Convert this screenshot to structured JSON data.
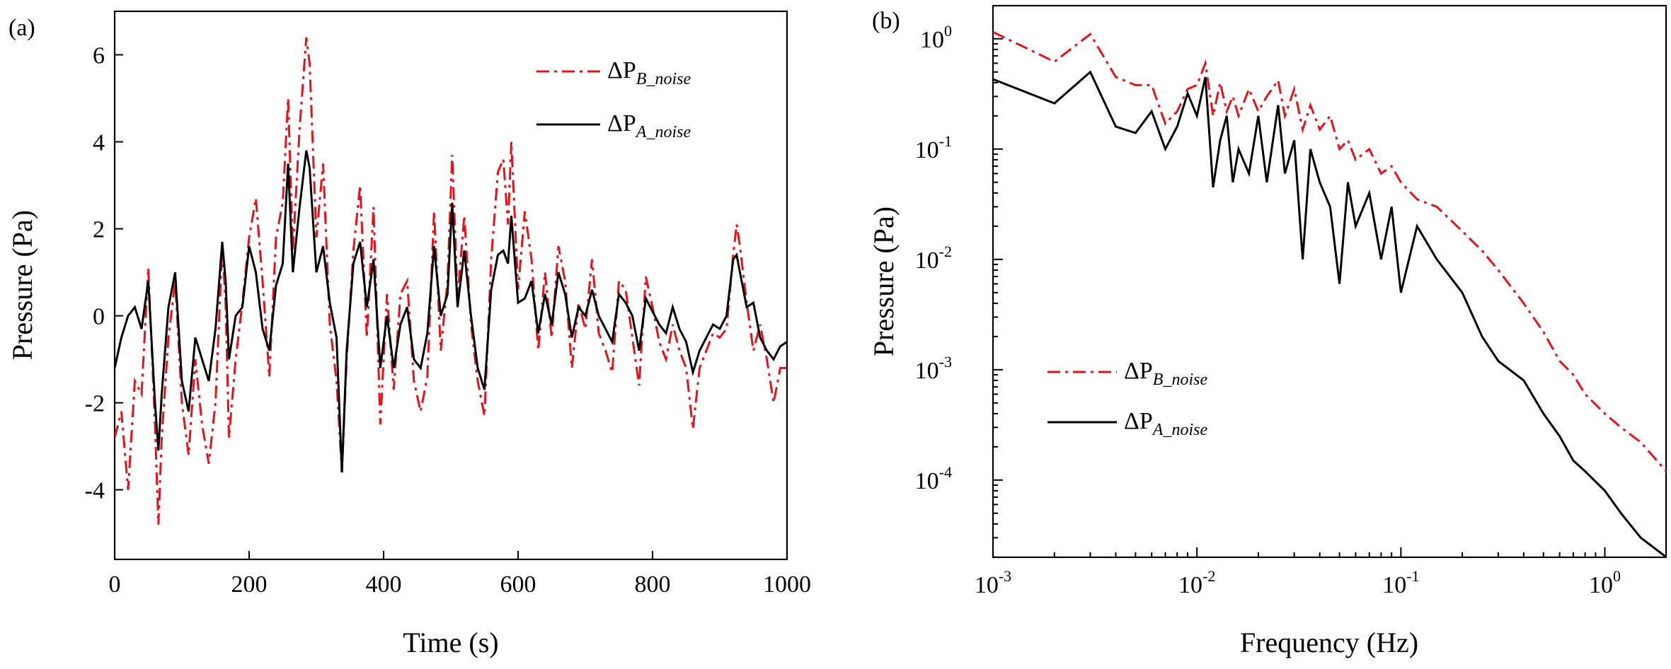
{
  "chart_data": [
    {
      "type": "line",
      "panel_label": "(a)",
      "xlabel": "Time (s)",
      "ylabel": "Pressure (Pa)",
      "xlim": [
        0,
        1000
      ],
      "ylim": [
        -5.6,
        7.0
      ],
      "xticks": [
        0,
        200,
        400,
        600,
        800,
        1000
      ],
      "xtick_labels": [
        "0",
        "200",
        "400",
        "600",
        "800",
        "1000"
      ],
      "yticks": [
        -4,
        -2,
        0,
        2,
        4,
        6
      ],
      "ytick_labels": [
        "-4",
        "-2",
        "0",
        "2",
        "4",
        "6"
      ],
      "legend": [
        {
          "symbol": "ΔP",
          "subscript": "B_noise",
          "color": "#e8101a",
          "style": "dash-dot"
        },
        {
          "symbol": "ΔP",
          "subscript": "A_noise",
          "color": "#000000",
          "style": "solid"
        }
      ],
      "series": [
        {
          "name": "ΔP B_noise",
          "color": "#e8101a",
          "style": "dash-dot",
          "x": [
            0,
            10,
            20,
            30,
            40,
            50,
            60,
            65,
            70,
            80,
            90,
            100,
            110,
            120,
            130,
            140,
            150,
            160,
            165,
            170,
            180,
            190,
            200,
            210,
            220,
            230,
            240,
            250,
            258,
            265,
            275,
            285,
            290,
            300,
            310,
            320,
            330,
            338,
            345,
            355,
            365,
            375,
            385,
            395,
            405,
            415,
            425,
            435,
            445,
            455,
            465,
            475,
            485,
            495,
            502,
            510,
            520,
            530,
            540,
            550,
            560,
            570,
            578,
            585,
            590,
            600,
            610,
            620,
            630,
            640,
            650,
            660,
            670,
            680,
            690,
            700,
            710,
            720,
            730,
            740,
            750,
            760,
            770,
            780,
            790,
            800,
            810,
            820,
            830,
            840,
            850,
            860,
            870,
            880,
            890,
            900,
            910,
            920,
            925,
            930,
            940,
            950,
            960,
            970,
            980,
            990,
            1000
          ],
          "y": [
            -2.8,
            -2.2,
            -4.0,
            -1.5,
            -1.8,
            1.1,
            -2.5,
            -4.8,
            -2.8,
            -0.5,
            0.8,
            -2.0,
            -3.2,
            -1.0,
            -2.5,
            -3.4,
            -2.0,
            1.6,
            0.3,
            -2.8,
            -1.0,
            0.3,
            1.8,
            2.7,
            0.8,
            -1.4,
            1.8,
            2.6,
            5.0,
            1.5,
            4.3,
            6.4,
            5.8,
            1.8,
            3.5,
            -0.2,
            -1.5,
            -3.6,
            -1.0,
            1.5,
            3.0,
            -0.5,
            2.5,
            -2.5,
            0.5,
            -1.7,
            0.5,
            0.8,
            -1.5,
            -2.2,
            -1.4,
            2.4,
            -0.8,
            0.8,
            3.7,
            0.4,
            2.3,
            -0.2,
            -1.5,
            -2.3,
            1.3,
            3.3,
            3.6,
            2.1,
            4.0,
            0.6,
            2.4,
            1.3,
            -0.8,
            1.0,
            -0.5,
            1.6,
            0.8,
            -1.2,
            0.3,
            -0.3,
            1.3,
            -0.4,
            -0.8,
            -1.3,
            0.8,
            0.6,
            -0.5,
            -1.6,
            0.9,
            0.2,
            -0.6,
            -1.0,
            -0.2,
            -0.8,
            -1.2,
            -2.6,
            -1.2,
            -0.8,
            -0.4,
            -0.5,
            -0.3,
            1.4,
            2.1,
            1.6,
            0.3,
            -0.8,
            -0.2,
            -1.0,
            -2.0,
            -1.2,
            -1.2
          ]
        },
        {
          "name": "ΔP A_noise",
          "color": "#000000",
          "style": "solid",
          "x": [
            0,
            10,
            20,
            30,
            40,
            50,
            60,
            65,
            70,
            80,
            90,
            100,
            110,
            120,
            130,
            140,
            150,
            160,
            165,
            170,
            180,
            190,
            200,
            210,
            220,
            230,
            240,
            250,
            258,
            265,
            275,
            285,
            290,
            300,
            310,
            320,
            330,
            338,
            345,
            355,
            365,
            375,
            385,
            395,
            405,
            415,
            425,
            435,
            445,
            455,
            465,
            475,
            485,
            495,
            502,
            510,
            520,
            530,
            540,
            550,
            560,
            570,
            578,
            585,
            590,
            600,
            610,
            620,
            630,
            640,
            650,
            660,
            670,
            680,
            690,
            700,
            710,
            720,
            730,
            740,
            750,
            760,
            770,
            780,
            790,
            800,
            810,
            820,
            830,
            840,
            850,
            860,
            870,
            880,
            890,
            900,
            910,
            920,
            925,
            930,
            940,
            950,
            960,
            970,
            980,
            990,
            1000
          ],
          "y": [
            -1.2,
            -0.5,
            0.0,
            0.2,
            -0.3,
            0.8,
            -2.0,
            -3.1,
            -1.8,
            0.2,
            1.0,
            -1.5,
            -2.2,
            -0.5,
            -1.0,
            -1.5,
            -0.3,
            1.7,
            0.8,
            -1.0,
            0.0,
            0.2,
            1.6,
            1.0,
            -0.3,
            -0.8,
            0.7,
            1.2,
            3.5,
            1.0,
            2.5,
            3.8,
            3.4,
            1.0,
            1.6,
            0.3,
            -0.5,
            -3.6,
            -0.8,
            1.2,
            1.7,
            0.2,
            1.3,
            -1.2,
            0.0,
            -1.2,
            -0.2,
            0.2,
            -1.0,
            -1.2,
            -0.4,
            1.6,
            0.0,
            0.5,
            2.6,
            0.2,
            1.5,
            0.0,
            -1.2,
            -1.7,
            0.6,
            1.4,
            1.5,
            1.2,
            2.3,
            0.3,
            0.4,
            0.8,
            -0.4,
            0.5,
            -0.2,
            1.0,
            0.5,
            -0.5,
            0.2,
            0.0,
            0.6,
            0.0,
            -0.3,
            -0.6,
            0.5,
            0.3,
            0.0,
            -0.8,
            0.4,
            0.1,
            -0.2,
            -0.4,
            0.2,
            -0.3,
            -0.6,
            -1.3,
            -0.8,
            -0.5,
            -0.2,
            -0.3,
            0.0,
            1.3,
            1.4,
            1.0,
            0.2,
            0.3,
            -0.5,
            -0.8,
            -1.0,
            -0.7,
            -0.6
          ]
        }
      ]
    },
    {
      "type": "line",
      "panel_label": "(b)",
      "xlabel": "Frequency (Hz)",
      "ylabel": "Pressure (Pa)",
      "xscale": "log",
      "yscale": "log",
      "xlim_log10": [
        -3,
        0.3
      ],
      "ylim_log10": [
        -4.7,
        0.3
      ],
      "xticks_log10": [
        -3,
        -2,
        -1,
        0
      ],
      "xtick_labels": [
        {
          "base": "10",
          "exp": "-3"
        },
        {
          "base": "10",
          "exp": "-2"
        },
        {
          "base": "10",
          "exp": "-1"
        },
        {
          "base": "10",
          "exp": "0"
        }
      ],
      "yticks_log10": [
        -4,
        -3,
        -2,
        -1,
        0
      ],
      "ytick_labels": [
        {
          "base": "10",
          "exp": "-4"
        },
        {
          "base": "10",
          "exp": "-3"
        },
        {
          "base": "10",
          "exp": "-2"
        },
        {
          "base": "10",
          "exp": "-1"
        },
        {
          "base": "10",
          "exp": "0"
        }
      ],
      "legend": [
        {
          "symbol": "ΔP",
          "subscript": "B_noise",
          "color": "#e8101a",
          "style": "dash-dot"
        },
        {
          "symbol": "ΔP",
          "subscript": "A_noise",
          "color": "#000000",
          "style": "solid"
        }
      ],
      "series": [
        {
          "name": "ΔP B_noise",
          "color": "#e8101a",
          "style": "dash-dot",
          "x": [
            0.001,
            0.002,
            0.003,
            0.004,
            0.005,
            0.006,
            0.007,
            0.008,
            0.009,
            0.01,
            0.011,
            0.012,
            0.013,
            0.014,
            0.015,
            0.016,
            0.018,
            0.02,
            0.022,
            0.025,
            0.027,
            0.03,
            0.033,
            0.036,
            0.04,
            0.045,
            0.05,
            0.055,
            0.06,
            0.07,
            0.08,
            0.09,
            0.1,
            0.12,
            0.15,
            0.2,
            0.25,
            0.3,
            0.4,
            0.5,
            0.6,
            0.7,
            0.8,
            1.0,
            1.2,
            1.5,
            2.0
          ],
          "y": [
            1.15,
            0.62,
            1.1,
            0.45,
            0.38,
            0.38,
            0.17,
            0.22,
            0.35,
            0.38,
            0.6,
            0.2,
            0.4,
            0.22,
            0.3,
            0.2,
            0.35,
            0.22,
            0.3,
            0.42,
            0.2,
            0.35,
            0.15,
            0.25,
            0.15,
            0.2,
            0.1,
            0.12,
            0.08,
            0.1,
            0.06,
            0.07,
            0.05,
            0.035,
            0.03,
            0.018,
            0.012,
            0.008,
            0.004,
            0.0022,
            0.0012,
            0.0009,
            0.0006,
            0.0004,
            0.0003,
            0.00022,
            0.00012
          ]
        },
        {
          "name": "ΔP A_noise",
          "color": "#000000",
          "style": "solid",
          "x": [
            0.001,
            0.002,
            0.003,
            0.004,
            0.005,
            0.006,
            0.007,
            0.008,
            0.009,
            0.01,
            0.011,
            0.012,
            0.013,
            0.014,
            0.015,
            0.016,
            0.018,
            0.02,
            0.022,
            0.025,
            0.027,
            0.03,
            0.033,
            0.036,
            0.04,
            0.045,
            0.05,
            0.055,
            0.06,
            0.07,
            0.08,
            0.09,
            0.1,
            0.12,
            0.15,
            0.2,
            0.25,
            0.3,
            0.4,
            0.5,
            0.6,
            0.7,
            0.8,
            1.0,
            1.2,
            1.5,
            2.0
          ],
          "y": [
            0.43,
            0.26,
            0.5,
            0.16,
            0.14,
            0.22,
            0.1,
            0.16,
            0.32,
            0.2,
            0.45,
            0.045,
            0.12,
            0.2,
            0.05,
            0.1,
            0.06,
            0.2,
            0.05,
            0.25,
            0.06,
            0.12,
            0.01,
            0.1,
            0.05,
            0.03,
            0.006,
            0.05,
            0.02,
            0.04,
            0.01,
            0.03,
            0.005,
            0.02,
            0.01,
            0.005,
            0.002,
            0.0012,
            0.0008,
            0.0004,
            0.00025,
            0.00015,
            0.00012,
            8e-05,
            5e-05,
            3e-05,
            2e-05
          ]
        }
      ]
    }
  ]
}
